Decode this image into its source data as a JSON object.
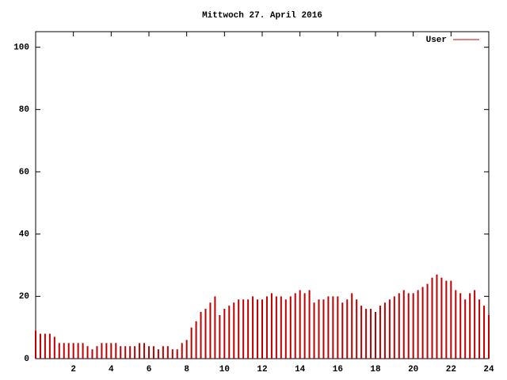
{
  "chart_data": {
    "type": "impulse",
    "title": "Mittwoch 27. April 2016",
    "series": [
      {
        "name": "User",
        "color": "#c00000",
        "x": [
          0,
          0.25,
          0.5,
          0.75,
          1,
          1.25,
          1.5,
          1.75,
          2,
          2.25,
          2.5,
          2.75,
          3,
          3.25,
          3.5,
          3.75,
          4,
          4.25,
          4.5,
          4.75,
          5,
          5.25,
          5.5,
          5.75,
          6,
          6.25,
          6.5,
          6.75,
          7,
          7.25,
          7.5,
          7.75,
          8,
          8.25,
          8.5,
          8.75,
          9,
          9.25,
          9.5,
          9.75,
          10,
          10.25,
          10.5,
          10.75,
          11,
          11.25,
          11.5,
          11.75,
          12,
          12.25,
          12.5,
          12.75,
          13,
          13.25,
          13.5,
          13.75,
          14,
          14.25,
          14.5,
          14.75,
          15,
          15.25,
          15.5,
          15.75,
          16,
          16.25,
          16.5,
          16.75,
          17,
          17.25,
          17.5,
          17.75,
          18,
          18.25,
          18.5,
          18.75,
          19,
          19.25,
          19.5,
          19.75,
          20,
          20.25,
          20.5,
          20.75,
          21,
          21.25,
          21.5,
          21.75,
          22,
          22.25,
          22.5,
          22.75,
          23,
          23.25,
          23.5,
          23.75,
          24
        ],
        "values": [
          9,
          8,
          8,
          8,
          7,
          5,
          5,
          5,
          5,
          5,
          5,
          4,
          3,
          4,
          5,
          5,
          5,
          5,
          4,
          4,
          4,
          4,
          5,
          5,
          4,
          4,
          3,
          4,
          4,
          3,
          3,
          5,
          6,
          10,
          12,
          15,
          16,
          18,
          20,
          14,
          16,
          17,
          18,
          19,
          19,
          19,
          20,
          19,
          19,
          20,
          21,
          20,
          20,
          19,
          20,
          21,
          22,
          21,
          22,
          18,
          19,
          19,
          20,
          20,
          20,
          18,
          19,
          21,
          19,
          17,
          16,
          16,
          15,
          17,
          18,
          19,
          20,
          21,
          22,
          21,
          21,
          22,
          23,
          24,
          26,
          27,
          26,
          25,
          25,
          22,
          21,
          19,
          21,
          22,
          19,
          17,
          14
        ]
      }
    ],
    "xlim": [
      0,
      24
    ],
    "xticks": [
      2,
      4,
      6,
      8,
      10,
      12,
      14,
      16,
      18,
      20,
      22,
      24
    ],
    "ylim": [
      0,
      105
    ],
    "yticks": [
      0,
      20,
      40,
      60,
      80,
      100
    ],
    "legend": "top-right"
  }
}
